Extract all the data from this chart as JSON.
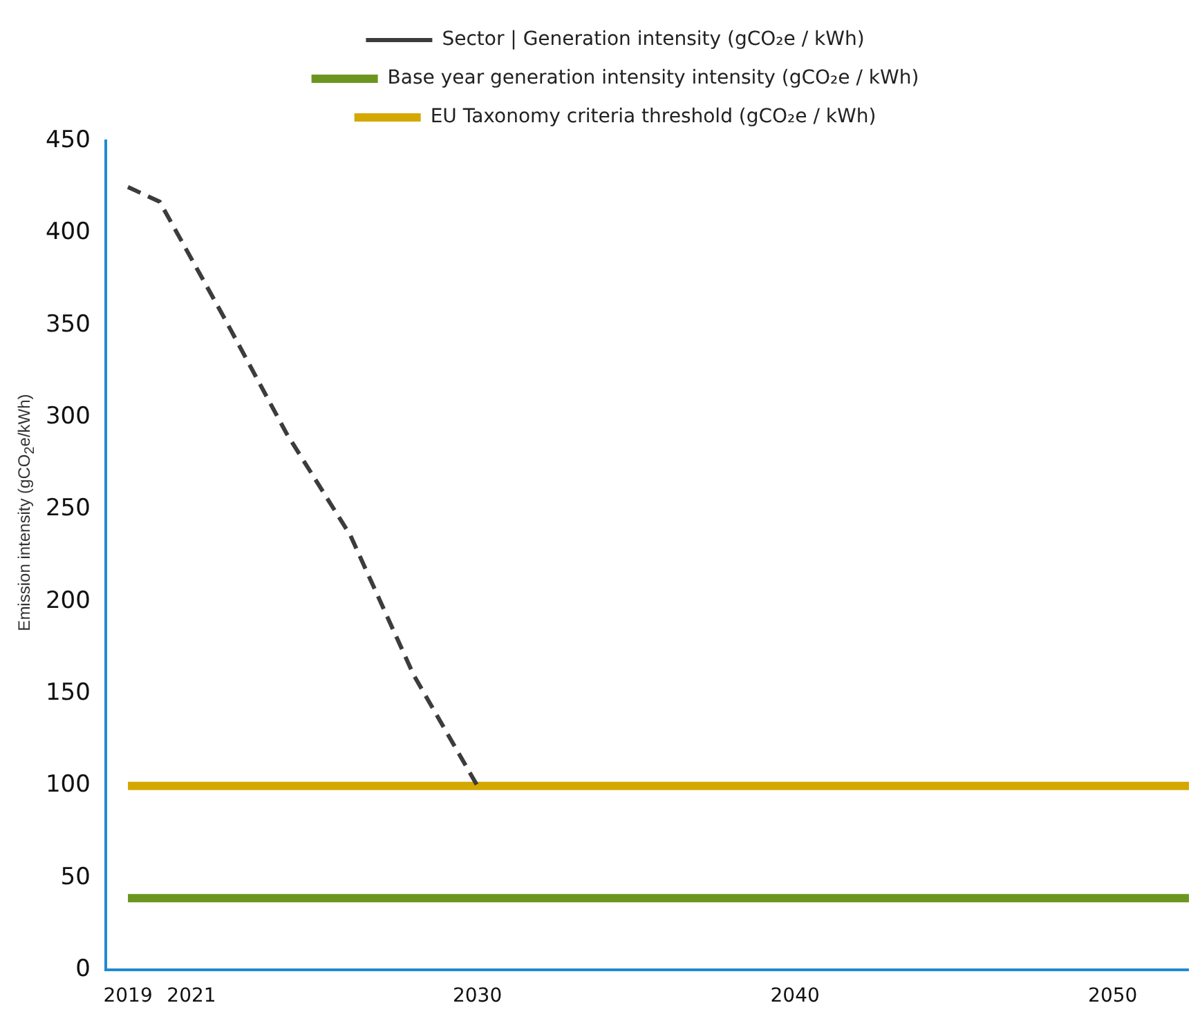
{
  "chart_data": {
    "type": "line",
    "ylabel": "Emission intensity (gCO$_{2}$e/kWh)",
    "xlim": [
      2018.3,
      2052.4
    ],
    "xticks": [
      2019,
      2021,
      2030,
      2040,
      2050
    ],
    "ylim": [
      0,
      450
    ],
    "yticks": [
      0,
      50,
      100,
      150,
      200,
      250,
      300,
      350,
      400,
      450
    ],
    "grid": false,
    "legend": "top",
    "marker": "none",
    "series": [
      {
        "name": "Sector | Generation intensity (gCO₂e / kWh)",
        "color": "#3c3c3c",
        "line_style": "dashed",
        "x": [
          2019,
          2020,
          2022,
          2024,
          2026,
          2028,
          2029,
          2030
        ],
        "values": [
          425,
          417,
          355,
          291,
          236,
          160,
          130,
          100
        ]
      },
      {
        "name": "Base year generation intensity intensity (gCO₂e / kWh)",
        "color": "#6a961f",
        "line_style": "solid",
        "x": [
          2019,
          2052.4
        ],
        "values": [
          39,
          39
        ]
      },
      {
        "name": "EU Taxonomy criteria threshold (gCO₂e / kWh)",
        "color": "#d4a800",
        "line_style": "solid",
        "x": [
          2019,
          2052.4
        ],
        "values": [
          100,
          100
        ]
      }
    ]
  }
}
